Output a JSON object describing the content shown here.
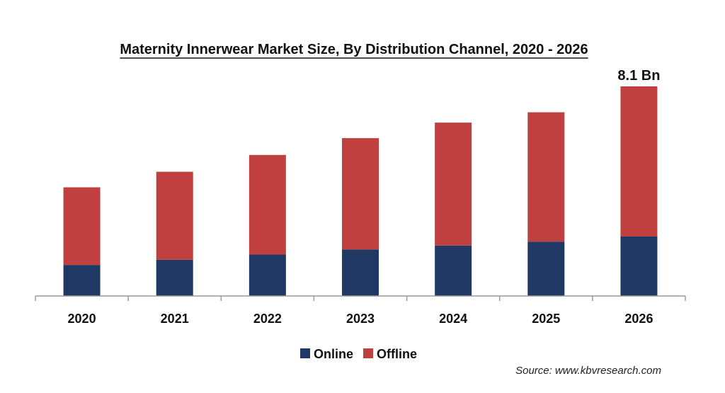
{
  "chart_data": {
    "type": "bar",
    "stacked": true,
    "title": "Maternity Innerwear Market Size, By Distribution Channel, 2020 - 2026",
    "categories": [
      "2020",
      "2021",
      "2022",
      "2023",
      "2024",
      "2025",
      "2026"
    ],
    "series": [
      {
        "name": "Online",
        "color": "#1f3864",
        "values": [
          1.2,
          1.4,
          1.6,
          1.8,
          1.95,
          2.1,
          2.3
        ]
      },
      {
        "name": "Offline",
        "color": "#c0403f",
        "values": [
          3.0,
          3.4,
          3.85,
          4.3,
          4.75,
          5.0,
          5.8
        ]
      }
    ],
    "annotations": [
      {
        "category": "2026",
        "text": "8.1 Bn"
      }
    ],
    "xlabel": "",
    "ylabel": "",
    "ylim": [
      0,
      8.1
    ],
    "grid": false,
    "legend": "bottom"
  },
  "source": "Source: www.kbvresearch.com"
}
